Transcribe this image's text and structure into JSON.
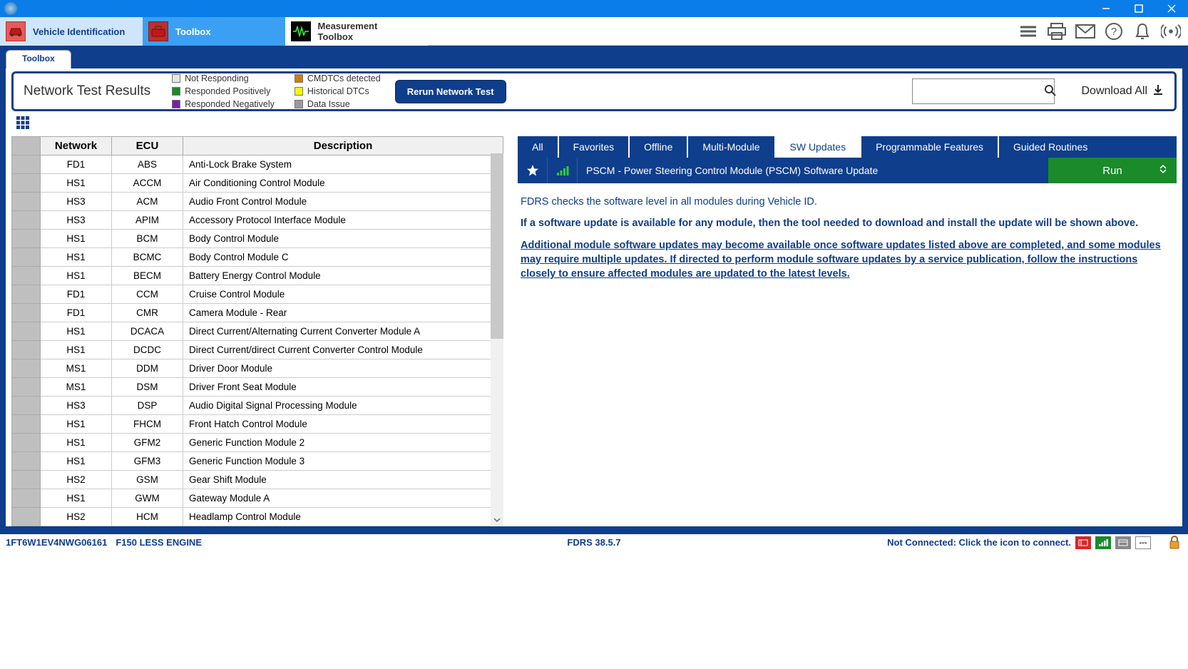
{
  "colors": {
    "brand_blue": "#0e3e8c",
    "ribbon_blue": "#0a7de8",
    "light_blue": "#cfe5fb",
    "sky_blue": "#3ba0f3",
    "run_green": "#1a8a2a",
    "status_grey": "#bfbfbf"
  },
  "nav": {
    "vehicle": "Vehicle Identification",
    "toolbox": "Toolbox",
    "measure": "Measurement Toolbox"
  },
  "tab_primary": "Toolbox",
  "legend": {
    "title": "Network Test Results",
    "items": [
      {
        "label": "Not Responding",
        "color": "#e6e6e6"
      },
      {
        "label": "Responded Positively",
        "color": "#1a8a2a"
      },
      {
        "label": "Responded Negatively",
        "color": "#7a1fa2"
      },
      {
        "label": "CMDTCs detected",
        "color": "#d67a00"
      },
      {
        "label": "Historical DTCs",
        "color": "#f7f700"
      },
      {
        "label": "Data Issue",
        "color": "#9a9a9a"
      }
    ],
    "rerun": "Rerun Network Test"
  },
  "search_placeholder": "",
  "download_all": "Download All",
  "table": {
    "headers": {
      "network": "Network",
      "ecu": "ECU",
      "description": "Description"
    },
    "col_widths": {
      "status": 40,
      "network": 100,
      "ecu": 100,
      "description": 390
    },
    "rows": [
      {
        "network": "FD1",
        "ecu": "ABS",
        "desc": "Anti-Lock Brake System"
      },
      {
        "network": "HS1",
        "ecu": "ACCM",
        "desc": "Air Conditioning Control Module"
      },
      {
        "network": "HS3",
        "ecu": "ACM",
        "desc": "Audio Front Control Module"
      },
      {
        "network": "HS3",
        "ecu": "APIM",
        "desc": "Accessory Protocol Interface Module"
      },
      {
        "network": "HS1",
        "ecu": "BCM",
        "desc": "Body Control Module"
      },
      {
        "network": "HS1",
        "ecu": "BCMC",
        "desc": "Body Control Module C"
      },
      {
        "network": "HS1",
        "ecu": "BECM",
        "desc": "Battery Energy Control Module"
      },
      {
        "network": "FD1",
        "ecu": "CCM",
        "desc": "Cruise Control Module"
      },
      {
        "network": "FD1",
        "ecu": "CMR",
        "desc": "Camera Module - Rear"
      },
      {
        "network": "HS1",
        "ecu": "DCACA",
        "desc": "Direct Current/Alternating Current Converter Module A"
      },
      {
        "network": "HS1",
        "ecu": "DCDC",
        "desc": "Direct Current/direct Current Converter Control Module"
      },
      {
        "network": "MS1",
        "ecu": "DDM",
        "desc": "Driver Door Module"
      },
      {
        "network": "MS1",
        "ecu": "DSM",
        "desc": "Driver Front Seat Module"
      },
      {
        "network": "HS3",
        "ecu": "DSP",
        "desc": "Audio Digital Signal Processing Module"
      },
      {
        "network": "HS1",
        "ecu": "FHCM",
        "desc": "Front Hatch Control Module"
      },
      {
        "network": "HS1",
        "ecu": "GFM2",
        "desc": "Generic Function Module 2"
      },
      {
        "network": "HS1",
        "ecu": "GFM3",
        "desc": "Generic Function Module 3"
      },
      {
        "network": "HS2",
        "ecu": "GSM",
        "desc": "Gear Shift Module"
      },
      {
        "network": "HS1",
        "ecu": "GWM",
        "desc": "Gateway Module A"
      },
      {
        "network": "HS2",
        "ecu": "HCM",
        "desc": "Headlamp Control Module"
      }
    ]
  },
  "right_tabs": [
    "All",
    "Favorites",
    "Offline",
    "Multi-Module",
    "SW Updates",
    "Programmable Features",
    "Guided Routines"
  ],
  "right_tab_active": 4,
  "module_row": {
    "label": "PSCM - Power Steering Control Module (PSCM) Software Update",
    "run": "Run"
  },
  "info": {
    "p1": "FDRS checks the software level in all modules during Vehicle ID.",
    "p2": "If a software update is available for any module, then the tool needed to download and install the update will be shown above.",
    "p3": "Additional module software updates may become available once software updates listed above are completed, and some modules may require multiple updates. If directed to perform module software updates by a service publication, follow the instructions closely to ensure affected modules are updated to the latest levels."
  },
  "status": {
    "vin": "1FT6W1EV4NWG06161",
    "vehicle": "F150 LESS ENGINE",
    "version": "FDRS 38.5.7",
    "conn": "Not Connected: Click the icon to connect."
  }
}
